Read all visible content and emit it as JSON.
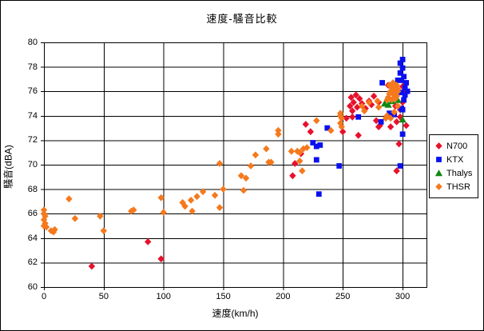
{
  "frame": {
    "background": "#ffffff",
    "border_color": "#000000"
  },
  "chart_data": {
    "type": "scatter",
    "title": "速度-騒音比較",
    "xlabel": "速度(km/h)",
    "ylabel": "騒音(dBA)",
    "xlim": [
      0,
      320
    ],
    "ylim": [
      60,
      80
    ],
    "x_ticks": [
      0,
      50,
      100,
      150,
      200,
      250,
      300
    ],
    "y_ticks": [
      60,
      62,
      64,
      66,
      68,
      70,
      72,
      74,
      76,
      78,
      80
    ],
    "grid": true,
    "gridline_color": "#000000",
    "legend_position": "right",
    "series": [
      {
        "name": "N700",
        "marker": "diamond",
        "color": "#e8112d",
        "points": [
          [
            40,
            61.7
          ],
          [
            87,
            63.7
          ],
          [
            98,
            62.3
          ],
          [
            208,
            69.1
          ],
          [
            210,
            70.1
          ],
          [
            215,
            70.9
          ],
          [
            219,
            73.3
          ],
          [
            223,
            72.7
          ],
          [
            250,
            72.7
          ],
          [
            253,
            73.8
          ],
          [
            256,
            74.8
          ],
          [
            257,
            75.5
          ],
          [
            258,
            74.4
          ],
          [
            258,
            73.9
          ],
          [
            259,
            75.1
          ],
          [
            261,
            75.7
          ],
          [
            262,
            74.7
          ],
          [
            263,
            72.4
          ],
          [
            264,
            75.4
          ],
          [
            266,
            75.0
          ],
          [
            269,
            74.6
          ],
          [
            272,
            75.2
          ],
          [
            274,
            74.9
          ],
          [
            276,
            75.6
          ],
          [
            278,
            73.6
          ],
          [
            280,
            75.1
          ],
          [
            280,
            73.1
          ],
          [
            281,
            73.2
          ],
          [
            288,
            76.5
          ],
          [
            290,
            73.1
          ],
          [
            294,
            74.8
          ],
          [
            295,
            73.5
          ],
          [
            295,
            69.5
          ],
          [
            297,
            71.7
          ],
          [
            298,
            74.5
          ],
          [
            298,
            73.9
          ],
          [
            300,
            75.1
          ],
          [
            300,
            76.4
          ],
          [
            302,
            76.1
          ],
          [
            303,
            73.2
          ]
        ]
      },
      {
        "name": "KTX",
        "marker": "square",
        "color": "#0a10ee",
        "points": [
          [
            225,
            71.8
          ],
          [
            228,
            71.5
          ],
          [
            228,
            70.4
          ],
          [
            230,
            67.6
          ],
          [
            231,
            71.6
          ],
          [
            237,
            73.0
          ],
          [
            247,
            69.9
          ],
          [
            263,
            73.9
          ],
          [
            282,
            73.5
          ],
          [
            283,
            76.7
          ],
          [
            289,
            74.2
          ],
          [
            293,
            74.1
          ],
          [
            298,
            69.9
          ],
          [
            299,
            74.6
          ],
          [
            300,
            74.5
          ],
          [
            300,
            72.5
          ],
          [
            296,
            76.9
          ],
          [
            298,
            77.5
          ],
          [
            298,
            78.3
          ],
          [
            300,
            78.6
          ],
          [
            300,
            77.9
          ],
          [
            301,
            77.2
          ],
          [
            299,
            76.9
          ],
          [
            301,
            75.3
          ],
          [
            302,
            76.3
          ],
          [
            302,
            75.7
          ],
          [
            299,
            75.9
          ],
          [
            303,
            76.7
          ],
          [
            304,
            76.0
          ]
        ]
      },
      {
        "name": "Thalys",
        "marker": "triangle",
        "color": "#118811",
        "points": [
          [
            285,
            75.0
          ],
          [
            288,
            74.9
          ],
          [
            291,
            75.2
          ],
          [
            296,
            75.3
          ],
          [
            300,
            73.7
          ]
        ]
      },
      {
        "name": "THSR",
        "marker": "diamond",
        "color": "#f5791d",
        "points": [
          [
            0,
            66.3
          ],
          [
            0,
            66.0
          ],
          [
            1,
            65.8
          ],
          [
            0,
            65.5
          ],
          [
            1,
            65.2
          ],
          [
            0,
            65.0
          ],
          [
            2,
            64.9
          ],
          [
            6,
            64.6
          ],
          [
            8,
            64.5
          ],
          [
            9,
            64.7
          ],
          [
            21,
            67.2
          ],
          [
            26,
            65.6
          ],
          [
            47,
            65.8
          ],
          [
            50,
            64.6
          ],
          [
            73,
            66.2
          ],
          [
            75,
            66.3
          ],
          [
            98,
            67.3
          ],
          [
            100,
            66.1
          ],
          [
            116,
            66.9
          ],
          [
            118,
            66.6
          ],
          [
            123,
            67.1
          ],
          [
            124,
            66.2
          ],
          [
            128,
            67.4
          ],
          [
            133,
            67.8
          ],
          [
            143,
            67.5
          ],
          [
            147,
            70.1
          ],
          [
            147,
            66.5
          ],
          [
            150,
            68.0
          ],
          [
            165,
            69.1
          ],
          [
            167,
            67.9
          ],
          [
            169,
            68.9
          ],
          [
            173,
            69.9
          ],
          [
            177,
            70.8
          ],
          [
            186,
            71.3
          ],
          [
            188,
            70.2
          ],
          [
            190,
            70.2
          ],
          [
            196,
            72.8
          ],
          [
            196,
            72.5
          ],
          [
            207,
            71.1
          ],
          [
            212,
            71.1
          ],
          [
            214,
            71.0
          ],
          [
            214,
            70.3
          ],
          [
            216,
            69.5
          ],
          [
            217,
            71.3
          ],
          [
            220,
            71.4
          ],
          [
            228,
            73.6
          ],
          [
            240,
            72.8
          ],
          [
            248,
            74.2
          ],
          [
            249,
            73.8
          ],
          [
            248,
            73.4
          ],
          [
            249,
            73.1
          ],
          [
            248,
            74.0
          ],
          [
            266,
            74.8
          ],
          [
            268,
            74.4
          ],
          [
            272,
            75.1
          ],
          [
            279,
            75.2
          ],
          [
            280,
            74.7
          ],
          [
            286,
            73.8
          ],
          [
            287,
            74.0
          ],
          [
            290,
            73.8
          ],
          [
            293,
            74.3
          ],
          [
            296,
            74.8
          ],
          [
            288,
            75.5
          ],
          [
            289,
            76.5
          ],
          [
            290,
            76.0
          ],
          [
            291,
            76.3
          ],
          [
            291,
            75.3
          ],
          [
            292,
            76.7
          ],
          [
            292,
            75.8
          ],
          [
            293,
            76.2
          ],
          [
            294,
            76.0
          ],
          [
            294,
            75.4
          ],
          [
            295,
            76.5
          ],
          [
            296,
            76.0
          ],
          [
            291,
            76.1
          ],
          [
            289,
            75.8
          ],
          [
            293,
            75.5
          ],
          [
            287,
            75.3
          ],
          [
            295,
            75.6
          ],
          [
            296,
            76.2
          ]
        ]
      }
    ]
  }
}
